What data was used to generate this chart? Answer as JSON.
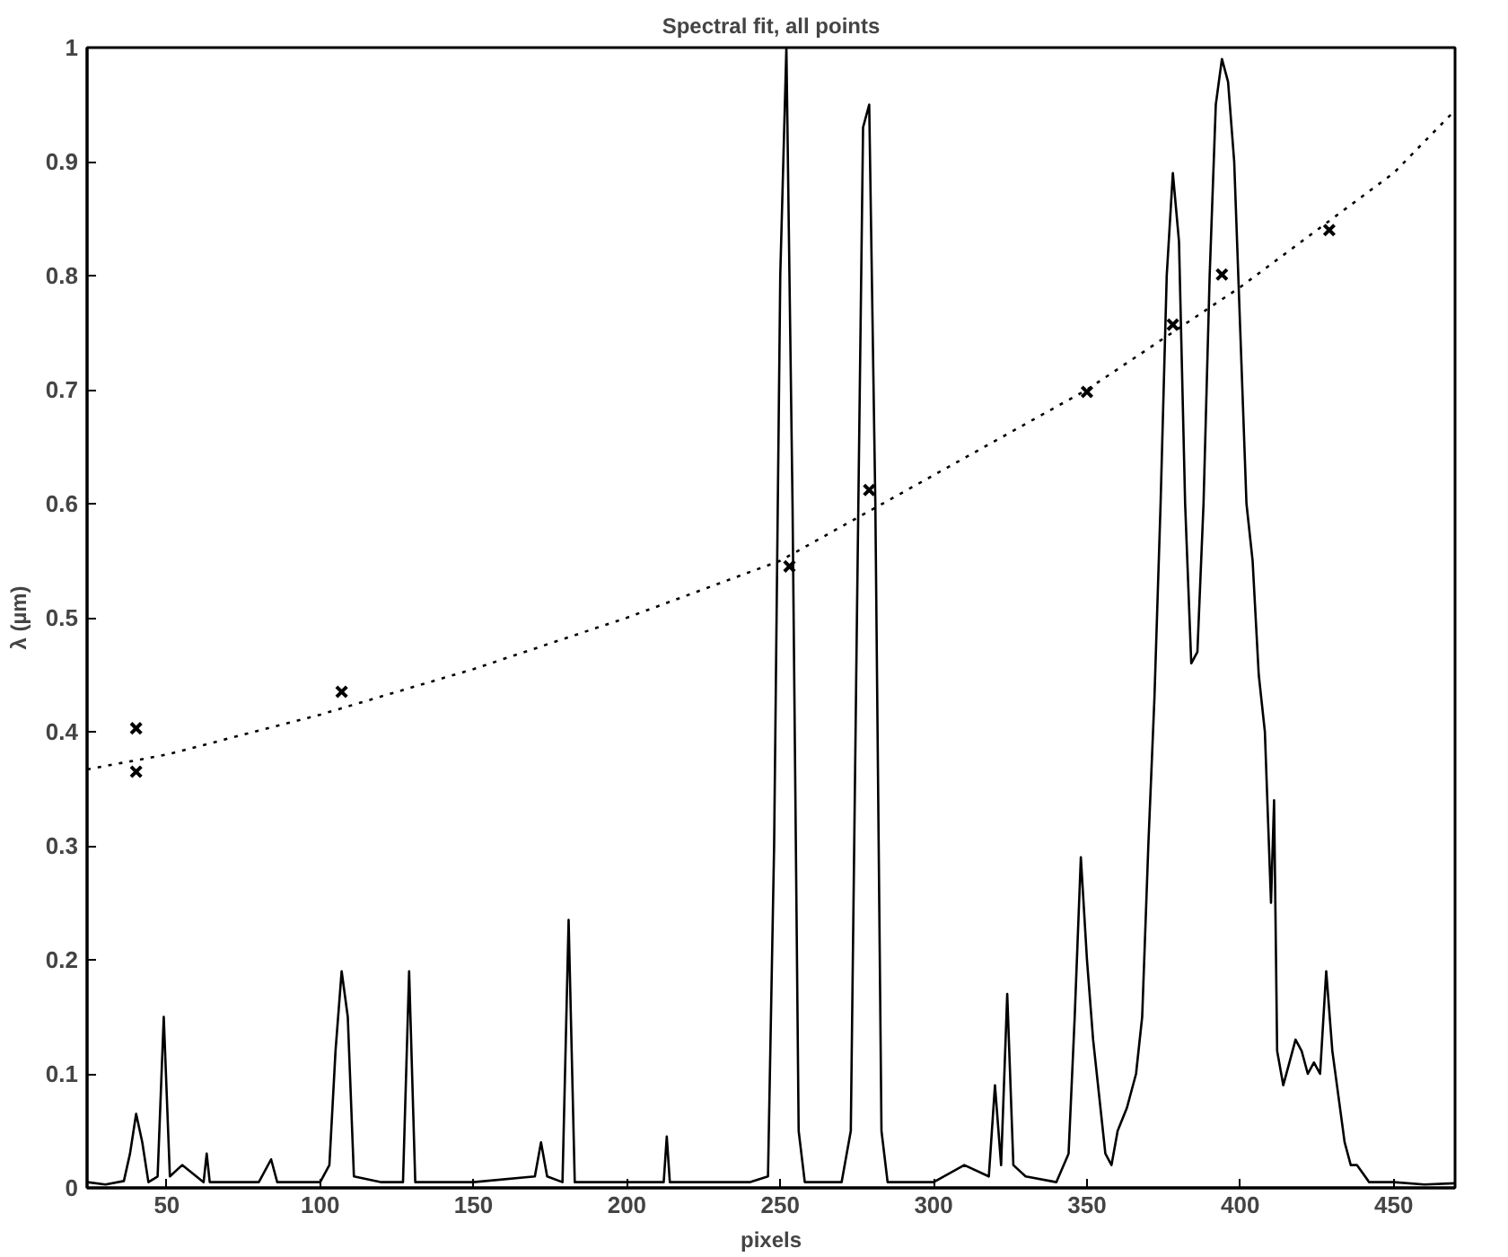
{
  "chart_data": {
    "type": "line",
    "title": "Spectral fit, all points",
    "xlabel": "pixels",
    "ylabel": "λ (µm)",
    "xlim": [
      24,
      470
    ],
    "ylim": [
      0,
      1
    ],
    "xticks": [
      50,
      100,
      150,
      200,
      250,
      300,
      350,
      400,
      450
    ],
    "yticks": [
      0,
      0.1,
      0.2,
      0.3,
      0.4,
      0.5,
      0.6,
      0.7,
      0.8,
      0.9,
      1
    ],
    "grid": false,
    "series": [
      {
        "color": "#000000",
        "line_style": "solid",
        "x": [
          24,
          30,
          36,
          38,
          40,
          42,
          44,
          47,
          49,
          51,
          55,
          62,
          63,
          64,
          80,
          84,
          86,
          100,
          103,
          105,
          107,
          109,
          111,
          120,
          127,
          129,
          131,
          150,
          170,
          172,
          174,
          179,
          181,
          183,
          200,
          212,
          213,
          214,
          240,
          246,
          248,
          250,
          252,
          254,
          256,
          258,
          270,
          273,
          275,
          277,
          279,
          281,
          283,
          285,
          300,
          310,
          318,
          320,
          322,
          324,
          326,
          330,
          340,
          344,
          346,
          348,
          350,
          352,
          354,
          356,
          358,
          360,
          363,
          366,
          368,
          370,
          372,
          374,
          376,
          378,
          380,
          382,
          384,
          386,
          388,
          390,
          392,
          394,
          396,
          398,
          400,
          402,
          404,
          406,
          408,
          410,
          411,
          412,
          414,
          416,
          418,
          420,
          422,
          424,
          426,
          428,
          430,
          432,
          434,
          436,
          438,
          442,
          450,
          460,
          470
        ],
        "values": [
          0.005,
          0.003,
          0.006,
          0.03,
          0.065,
          0.04,
          0.005,
          0.01,
          0.15,
          0.01,
          0.02,
          0.005,
          0.03,
          0.005,
          0.005,
          0.025,
          0.005,
          0.005,
          0.02,
          0.12,
          0.19,
          0.15,
          0.01,
          0.005,
          0.005,
          0.19,
          0.005,
          0.005,
          0.01,
          0.04,
          0.01,
          0.005,
          0.235,
          0.005,
          0.005,
          0.005,
          0.045,
          0.005,
          0.005,
          0.01,
          0.3,
          0.8,
          1.0,
          0.6,
          0.05,
          0.005,
          0.005,
          0.05,
          0.5,
          0.93,
          0.95,
          0.6,
          0.05,
          0.005,
          0.005,
          0.02,
          0.01,
          0.09,
          0.02,
          0.17,
          0.02,
          0.01,
          0.005,
          0.03,
          0.15,
          0.29,
          0.2,
          0.13,
          0.08,
          0.03,
          0.02,
          0.05,
          0.07,
          0.1,
          0.15,
          0.3,
          0.43,
          0.6,
          0.8,
          0.89,
          0.83,
          0.6,
          0.46,
          0.47,
          0.6,
          0.8,
          0.95,
          0.99,
          0.97,
          0.9,
          0.75,
          0.6,
          0.55,
          0.45,
          0.4,
          0.25,
          0.34,
          0.12,
          0.09,
          0.11,
          0.13,
          0.12,
          0.1,
          0.11,
          0.1,
          0.19,
          0.12,
          0.08,
          0.04,
          0.02,
          0.02,
          0.005,
          0.005,
          0.003,
          0.004
        ]
      },
      {
        "type": "line",
        "color": "#000000",
        "line_style": "dotted",
        "x": [
          24,
          50,
          100,
          150,
          200,
          250,
          300,
          350,
          400,
          450,
          470
        ],
        "values": [
          0.367,
          0.38,
          0.415,
          0.455,
          0.5,
          0.55,
          0.625,
          0.7,
          0.79,
          0.89,
          0.945
        ]
      },
      {
        "type": "scatter",
        "color": "#000000",
        "marker": "cross",
        "x": [
          40,
          40,
          107,
          253,
          279,
          350,
          378,
          394,
          429
        ],
        "values": [
          0.403,
          0.365,
          0.435,
          0.545,
          0.612,
          0.698,
          0.757,
          0.801,
          0.84
        ]
      }
    ]
  }
}
